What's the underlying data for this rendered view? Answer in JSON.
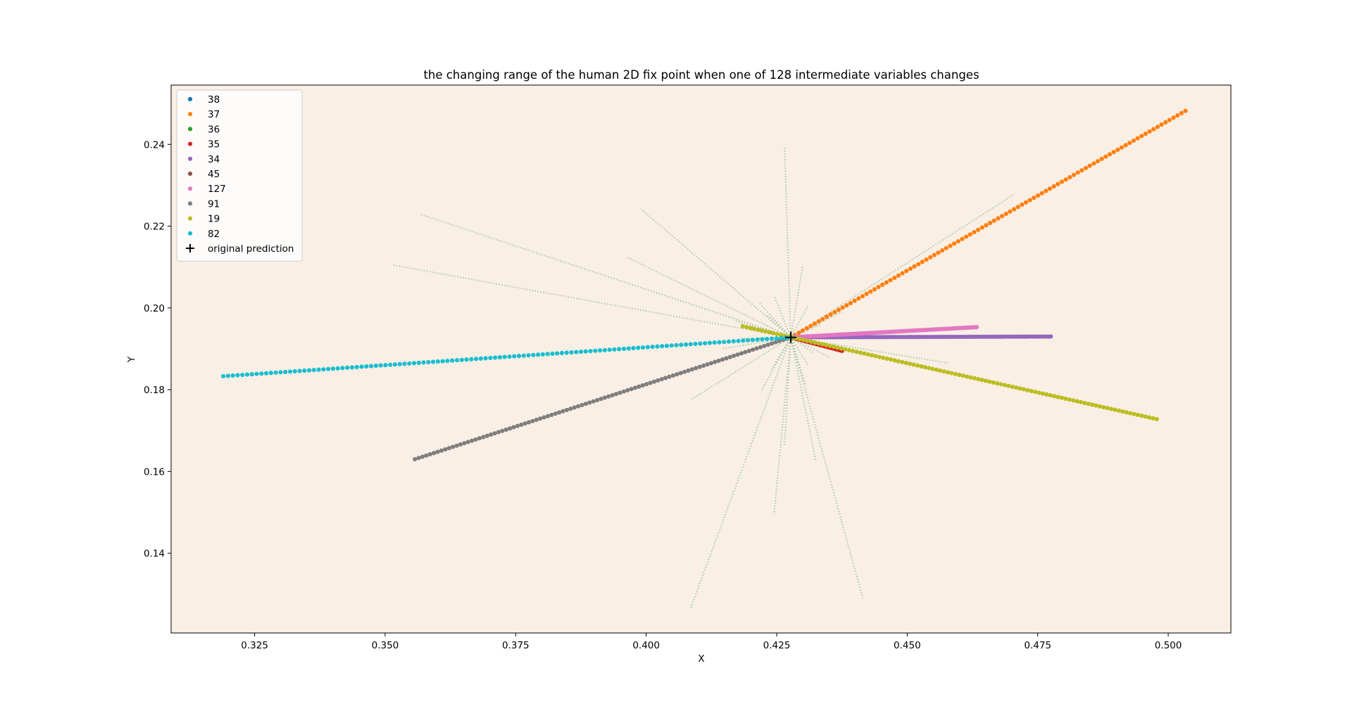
{
  "chart_data": {
    "type": "scatter",
    "title": "the changing range of the human 2D fix point when one of 128 intermediate variables changes",
    "xlabel": "X",
    "ylabel": "Y",
    "xlim": [
      0.309,
      0.512
    ],
    "ylim": [
      0.1205,
      0.2545
    ],
    "xticks": [
      0.325,
      0.35,
      0.375,
      0.4,
      0.425,
      0.45,
      0.475,
      0.5
    ],
    "xtick_labels": [
      "0.325",
      "0.350",
      "0.375",
      "0.400",
      "0.425",
      "0.450",
      "0.475",
      "0.500"
    ],
    "yticks": [
      0.14,
      0.16,
      0.18,
      0.2,
      0.22,
      0.24
    ],
    "ytick_labels": [
      "0.14",
      "0.16",
      "0.18",
      "0.20",
      "0.22",
      "0.24"
    ],
    "grid": false,
    "background": "#f9efe5",
    "legend_position": "upper-left",
    "original_prediction": {
      "label": "original prediction",
      "x": 0.4277,
      "y": 0.1928,
      "marker": "+",
      "color": "#000000"
    },
    "series": [
      {
        "name": "38",
        "color": "#1f77b4",
        "start": [
          0.4277,
          0.1928
        ],
        "end": [
          0.4277,
          0.1928
        ],
        "n": 3
      },
      {
        "name": "37",
        "color": "#ff7f0e",
        "start": [
          0.4277,
          0.1928
        ],
        "end": [
          0.5033,
          0.2482
        ],
        "n": 100
      },
      {
        "name": "36",
        "color": "#2ca02c",
        "start": [
          0.4277,
          0.1928
        ],
        "end": [
          0.4277,
          0.1928
        ],
        "n": 3
      },
      {
        "name": "35",
        "color": "#d62728",
        "start": [
          0.4277,
          0.1928
        ],
        "end": [
          0.4375,
          0.1895
        ],
        "n": 25
      },
      {
        "name": "34",
        "color": "#9467bd",
        "start": [
          0.4277,
          0.1928
        ],
        "end": [
          0.4775,
          0.193
        ],
        "n": 100
      },
      {
        "name": "45",
        "color": "#8c564b",
        "start": [
          0.4277,
          0.1928
        ],
        "end": [
          0.4277,
          0.1928
        ],
        "n": 3
      },
      {
        "name": "127",
        "color": "#e377c2",
        "start": [
          0.4277,
          0.1928
        ],
        "end": [
          0.4633,
          0.1953
        ],
        "n": 100
      },
      {
        "name": "91",
        "color": "#7f7f7f",
        "start": [
          0.4277,
          0.1928
        ],
        "end": [
          0.3557,
          0.163
        ],
        "n": 100
      },
      {
        "name": "19",
        "color": "#bcbd22",
        "start": [
          0.4185,
          0.1955
        ],
        "end": [
          0.4978,
          0.1728
        ],
        "n": 110
      },
      {
        "name": "82",
        "color": "#17becf",
        "start": [
          0.4277,
          0.1928
        ],
        "end": [
          0.319,
          0.1833
        ],
        "n": 120
      }
    ],
    "background_lines": {
      "color": "#8fbc8f",
      "lines": [
        [
          [
            0.4277,
            0.1928
          ],
          [
            0.4265,
            0.2396
          ]
        ],
        [
          [
            0.4277,
            0.1928
          ],
          [
            0.3565,
            0.223
          ]
        ],
        [
          [
            0.4277,
            0.1928
          ],
          [
            0.3515,
            0.2105
          ]
        ],
        [
          [
            0.4277,
            0.1928
          ],
          [
            0.399,
            0.2242
          ]
        ],
        [
          [
            0.4277,
            0.1928
          ],
          [
            0.3965,
            0.2123
          ]
        ],
        [
          [
            0.4277,
            0.1928
          ],
          [
            0.4705,
            0.2278
          ]
        ],
        [
          [
            0.4277,
            0.1928
          ],
          [
            0.43,
            0.2105
          ]
        ],
        [
          [
            0.4277,
            0.1928
          ],
          [
            0.458,
            0.1865
          ]
        ],
        [
          [
            0.4277,
            0.1928
          ],
          [
            0.4085,
            0.1775
          ]
        ],
        [
          [
            0.4277,
            0.1928
          ],
          [
            0.4085,
            0.1265
          ]
        ],
        [
          [
            0.4277,
            0.1928
          ],
          [
            0.4415,
            0.129
          ]
        ],
        [
          [
            0.4277,
            0.1928
          ],
          [
            0.4245,
            0.1495
          ]
        ],
        [
          [
            0.4277,
            0.1928
          ],
          [
            0.4325,
            0.1625
          ]
        ],
        [
          [
            0.4277,
            0.1928
          ],
          [
            0.4265,
            0.1665
          ]
        ],
        [
          [
            0.4277,
            0.1928
          ],
          [
            0.422,
            0.1795
          ]
        ],
        [
          [
            0.4277,
            0.1928
          ],
          [
            0.4375,
            0.199
          ]
        ],
        [
          [
            0.4277,
            0.1928
          ],
          [
            0.417,
            0.1968
          ]
        ],
        [
          [
            0.4277,
            0.1928
          ],
          [
            0.4145,
            0.19
          ]
        ],
        [
          [
            0.4277,
            0.1928
          ],
          [
            0.435,
            0.188
          ]
        ],
        [
          [
            0.4277,
            0.1928
          ],
          [
            0.431,
            0.186
          ]
        ],
        [
          [
            0.4277,
            0.1928
          ],
          [
            0.4215,
            0.2015
          ]
        ],
        [
          [
            0.4277,
            0.1928
          ],
          [
            0.4335,
            0.196
          ]
        ],
        [
          [
            0.4277,
            0.1928
          ],
          [
            0.431,
            0.2005
          ]
        ],
        [
          [
            0.4277,
            0.1928
          ],
          [
            0.423,
            0.1985
          ]
        ],
        [
          [
            0.4277,
            0.1928
          ],
          [
            0.424,
            0.185
          ]
        ],
        [
          [
            0.4277,
            0.1928
          ],
          [
            0.438,
            0.194
          ]
        ],
        [
          [
            0.4277,
            0.1928
          ],
          [
            0.418,
            0.1925
          ]
        ],
        [
          [
            0.4277,
            0.1928
          ],
          [
            0.4305,
            0.1812
          ]
        ],
        [
          [
            0.4277,
            0.1928
          ],
          [
            0.4245,
            0.203
          ]
        ],
        [
          [
            0.4277,
            0.1928
          ],
          [
            0.432,
            0.189
          ]
        ],
        [
          [
            0.4277,
            0.1928
          ],
          [
            0.436,
            0.191
          ]
        ],
        [
          [
            0.4277,
            0.1928
          ],
          [
            0.42,
            0.1955
          ]
        ]
      ]
    }
  }
}
